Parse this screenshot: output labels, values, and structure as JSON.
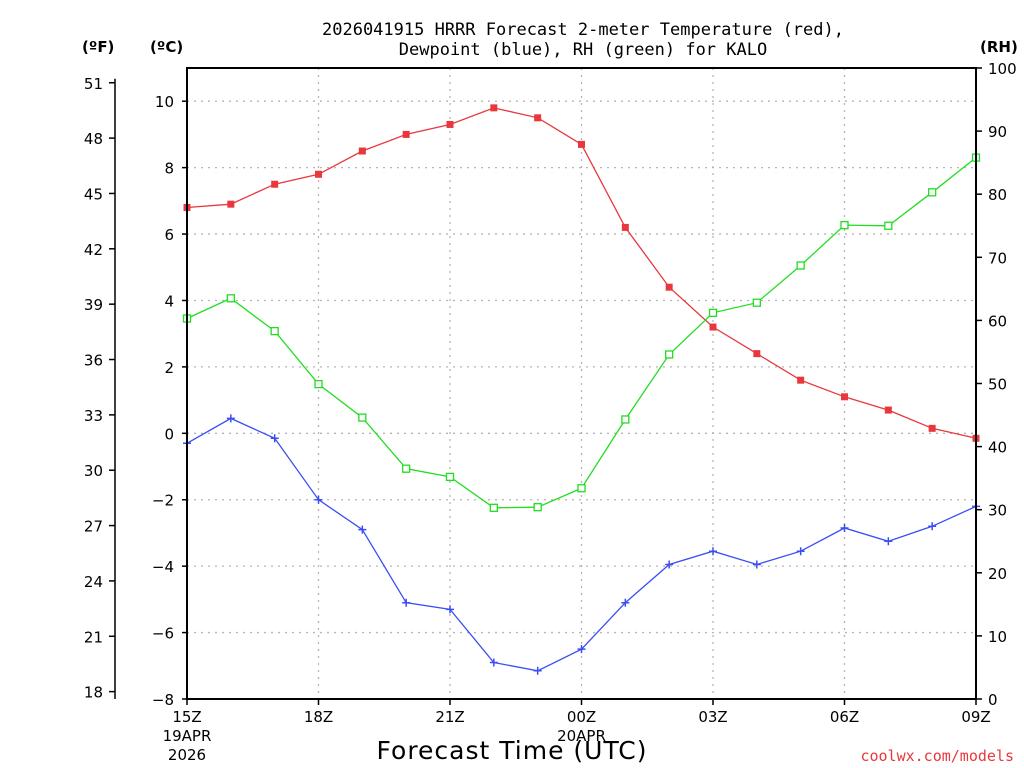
{
  "chart_data": {
    "type": "line",
    "title_line1": "2026041915 HRRR Forecast 2-meter Temperature (red),",
    "title_line2": "Dewpoint (blue), RH (green) for KALO",
    "xlabel": "Forecast Time (UTC)",
    "credit": "coolwx.com/models",
    "unit_f": "(ºF)",
    "unit_c": "(ºC)",
    "unit_rh": "(RH)",
    "x": [
      0,
      1,
      2,
      3,
      4,
      5,
      6,
      7,
      8,
      9,
      10,
      11,
      12,
      13,
      14,
      15,
      16,
      17,
      18
    ],
    "xlim": [
      0,
      18
    ],
    "x_ticks": [
      {
        "x": 0,
        "label": "15Z",
        "sub1": "19APR",
        "sub2": "2026"
      },
      {
        "x": 3,
        "label": "18Z",
        "sub1": "",
        "sub2": ""
      },
      {
        "x": 6,
        "label": "21Z",
        "sub1": "",
        "sub2": ""
      },
      {
        "x": 9,
        "label": "00Z",
        "sub1": "20APR",
        "sub2": ""
      },
      {
        "x": 12,
        "label": "03Z",
        "sub1": "",
        "sub2": ""
      },
      {
        "x": 15,
        "label": "06Z",
        "sub1": "",
        "sub2": ""
      },
      {
        "x": 18,
        "label": "09Z",
        "sub1": "",
        "sub2": ""
      }
    ],
    "ylim_c": [
      -8,
      11
    ],
    "y_ticks_c": [
      "10",
      "8",
      "6",
      "4",
      "2",
      "0",
      "−2",
      "−4",
      "−6",
      "−8"
    ],
    "y_ticks_f": [
      "51",
      "48",
      "45",
      "42",
      "39",
      "36",
      "33",
      "30",
      "27",
      "24",
      "21",
      "18"
    ],
    "y_ticks_rh": [
      "100",
      "90",
      "80",
      "70",
      "60",
      "50",
      "40",
      "30",
      "20",
      "10",
      "0"
    ],
    "ylim_rh": [
      0,
      100
    ],
    "series": [
      {
        "name": "Temperature",
        "unit": "C",
        "color": "#e8383d",
        "marker": "filled-square",
        "values": [
          6.8,
          6.9,
          7.5,
          7.8,
          8.5,
          9.0,
          9.3,
          9.8,
          9.5,
          8.7,
          6.2,
          4.4,
          3.2,
          2.4,
          1.6,
          1.1,
          0.7,
          0.15,
          -0.15
        ]
      },
      {
        "name": "Dewpoint",
        "unit": "C",
        "color": "#3a4ef2",
        "marker": "plus",
        "values": [
          -0.3,
          0.45,
          -0.15,
          -2.0,
          -2.9,
          -5.1,
          -5.3,
          -6.9,
          -7.15,
          -6.5,
          -5.1,
          -3.95,
          -3.55,
          -3.95,
          -3.55,
          -2.85,
          -3.25,
          -2.8,
          -2.2
        ]
      },
      {
        "name": "RH",
        "unit": "%",
        "color": "#22dd22",
        "marker": "open-square",
        "values": [
          60.3,
          63.5,
          58.3,
          49.9,
          44.6,
          36.5,
          35.2,
          30.3,
          30.4,
          33.4,
          44.3,
          54.6,
          61.2,
          62.8,
          68.7,
          75.1,
          75.0,
          80.3,
          85.8
        ]
      }
    ]
  }
}
